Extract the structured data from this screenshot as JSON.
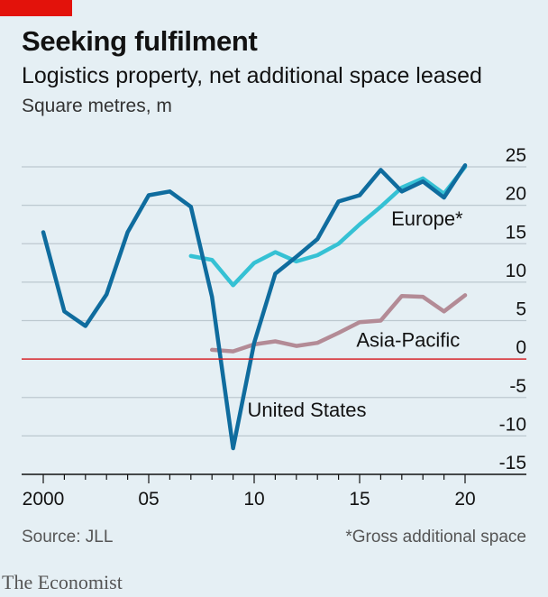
{
  "title": "Seeking fulfilment",
  "subtitle": "Logistics property, net additional space leased",
  "unit": "Square metres, m",
  "source": "Source: JLL",
  "footnote": "*Gross additional space",
  "brand": "The Economist",
  "colors": {
    "background": "#e5eff4",
    "united_states": "#0f6c9e",
    "europe": "#35c1d4",
    "asia_pacific": "#b38b96",
    "zero_line": "#d6242a",
    "grid": "#bcc8cf",
    "brand_tag": "#e3120b"
  },
  "chart_data": {
    "type": "line",
    "xlim": [
      2000,
      2020
    ],
    "ylim": [
      -15,
      25
    ],
    "x_ticks": [
      2000,
      2005,
      2010,
      2015,
      2020
    ],
    "x_tick_labels": [
      "2000",
      "05",
      "10",
      "15",
      "20"
    ],
    "y_ticks": [
      25,
      20,
      15,
      10,
      5,
      0,
      -5,
      -10,
      -15
    ],
    "y_tick_labels": [
      "25",
      "20",
      "15",
      "10",
      "5",
      "0",
      "-5",
      "-10",
      "-15"
    ],
    "grid": true,
    "series": [
      {
        "name": "United States",
        "color": "#0f6c9e",
        "points": [
          [
            2000,
            16.5
          ],
          [
            2001,
            6.2
          ],
          [
            2002,
            4.3
          ],
          [
            2003,
            8.4
          ],
          [
            2004,
            16.5
          ],
          [
            2005,
            21.3
          ],
          [
            2006,
            21.8
          ],
          [
            2007,
            19.8
          ],
          [
            2008,
            8.1
          ],
          [
            2009,
            -11.6
          ],
          [
            2010,
            2.1
          ],
          [
            2011,
            11.1
          ],
          [
            2012,
            13.3
          ],
          [
            2013,
            15.6
          ],
          [
            2014,
            20.5
          ],
          [
            2015,
            21.3
          ],
          [
            2016,
            24.6
          ],
          [
            2017,
            21.8
          ],
          [
            2018,
            23.1
          ],
          [
            2019,
            21.0
          ],
          [
            2020,
            25.2
          ]
        ]
      },
      {
        "name": "Europe*",
        "color": "#35c1d4",
        "points": [
          [
            2007,
            13.4
          ],
          [
            2008,
            12.9
          ],
          [
            2009,
            9.6
          ],
          [
            2010,
            12.5
          ],
          [
            2011,
            13.9
          ],
          [
            2012,
            12.7
          ],
          [
            2013,
            13.5
          ],
          [
            2014,
            15.0
          ],
          [
            2015,
            17.5
          ],
          [
            2016,
            19.8
          ],
          [
            2017,
            22.3
          ],
          [
            2018,
            23.5
          ],
          [
            2019,
            21.5
          ],
          [
            2020,
            25.0
          ]
        ]
      },
      {
        "name": "Asia-Pacific",
        "color": "#b38b96",
        "points": [
          [
            2008,
            1.2
          ],
          [
            2009,
            1.0
          ],
          [
            2010,
            1.9
          ],
          [
            2011,
            2.3
          ],
          [
            2012,
            1.7
          ],
          [
            2013,
            2.1
          ],
          [
            2014,
            3.4
          ],
          [
            2015,
            4.8
          ],
          [
            2016,
            5.0
          ],
          [
            2017,
            8.2
          ],
          [
            2018,
            8.1
          ],
          [
            2019,
            6.2
          ],
          [
            2020,
            8.3
          ]
        ]
      }
    ],
    "annotations": [
      {
        "text": "Europe*",
        "x": 2018.2,
        "y": 17.4
      },
      {
        "text": "Asia-Pacific",
        "x": 2017.3,
        "y": 1.6
      },
      {
        "text": "United States",
        "x": 2012.5,
        "y": -7.5
      }
    ]
  }
}
